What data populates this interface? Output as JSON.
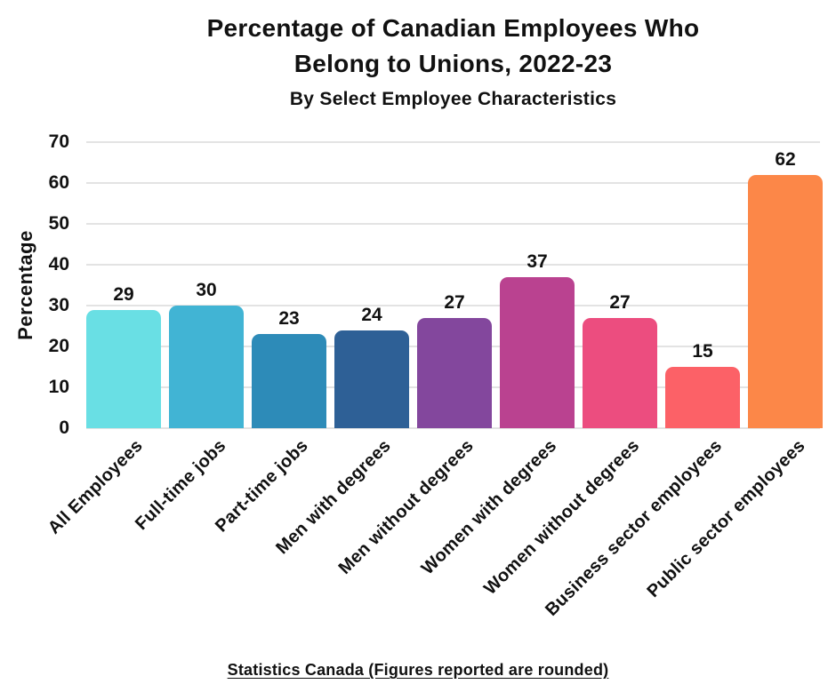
{
  "title_lines": [
    "Percentage of Canadian Employees Who",
    "Belong to Unions, 2022-23"
  ],
  "chart_data": {
    "type": "bar",
    "title": "Percentage of Canadian Employees Who Belong to Unions, 2022-23",
    "subtitle": "By Select Employee Characteristics",
    "categories": [
      "All Employees",
      "Full-time jobs",
      "Part-time jobs",
      "Men with degrees",
      "Men without degrees",
      "Women with degrees",
      "Women without degrees",
      "Business sector employees",
      "Public sector employees"
    ],
    "values": [
      29,
      30,
      23,
      24,
      27,
      37,
      27,
      15,
      62
    ],
    "bar_colors": [
      "#69DFE4",
      "#41B4D4",
      "#2D8BB8",
      "#2E6096",
      "#83479D",
      "#BA4290",
      "#EC4D7F",
      "#FC6167",
      "#FC8748"
    ],
    "xlabel": "",
    "ylabel": "Percentage",
    "yticks": [
      0,
      10,
      20,
      30,
      40,
      50,
      60,
      70
    ],
    "ylim": [
      0,
      70
    ],
    "grid": true,
    "legend": false,
    "source_note": "Statistics Canada (Figures reported are rounded)"
  },
  "colors": {
    "text": "#111111",
    "grid": "#E3E3E3",
    "background": "#FFFFFF"
  }
}
